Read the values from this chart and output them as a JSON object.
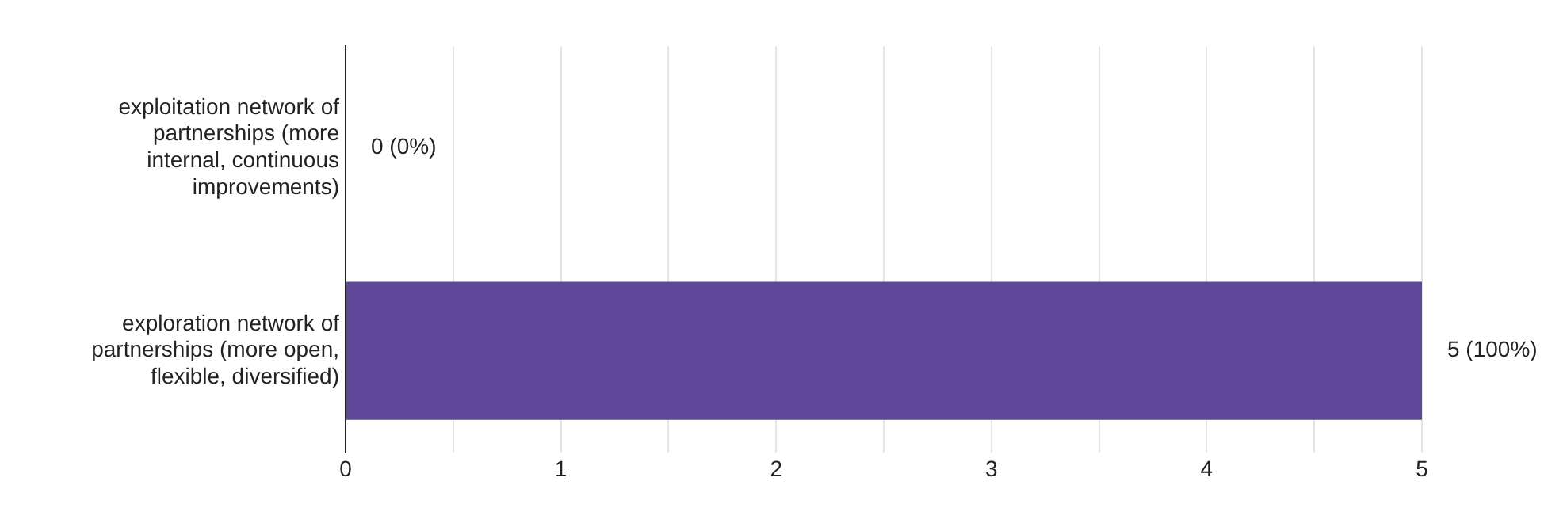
{
  "chart_data": {
    "type": "bar",
    "orientation": "horizontal",
    "categories": [
      "exploitation network of partnerships (more internal, continuous improvements)",
      "exploration network of partnerships (more open, flexible, diversified)"
    ],
    "values": [
      0,
      5
    ],
    "color": "#5e4699",
    "value_labels": [
      "0 (0%)",
      "5 (100%)"
    ],
    "xlim": [
      0,
      5
    ],
    "xticks": [
      0,
      {
        "value": 0.5,
        "label": null
      },
      1,
      {
        "value": 1.5,
        "label": null
      },
      2,
      {
        "value": 2.5,
        "label": null
      },
      3,
      {
        "value": 3.5,
        "label": null
      },
      4,
      {
        "value": 4.5,
        "label": null
      },
      5
    ],
    "grid": "x",
    "legend": false
  }
}
